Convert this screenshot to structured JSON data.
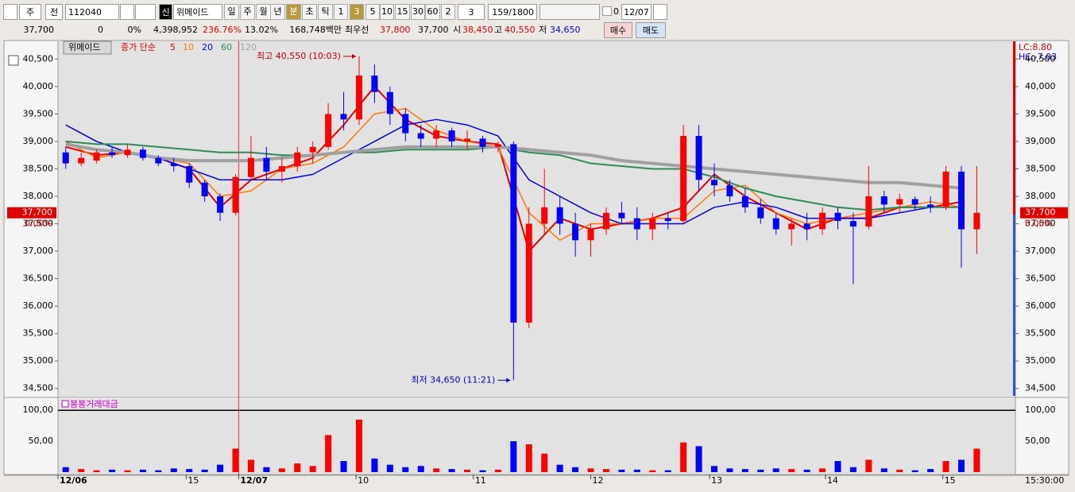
{
  "toolbar": {
    "market": "주",
    "scope": "전",
    "code": "112040",
    "badge": "신",
    "name": "위메이드",
    "periods": [
      "일",
      "주",
      "월",
      "년",
      "분",
      "초",
      "틱"
    ],
    "minutes": [
      "1",
      "3",
      "5",
      "10",
      "15",
      "30",
      "60",
      "2"
    ],
    "interval": "3",
    "count": "159/1800",
    "check": "0",
    "date": "12/07"
  },
  "quote": {
    "price": "37,700",
    "change": "0",
    "rate": "0%",
    "volume": "4,398,952",
    "vol_ratio": "236.76%",
    "turnover": "13.02%",
    "amount": "168,748백만",
    "best_label": "최우선",
    "ask": "37,800",
    "bid": "37,700",
    "open_label": "시",
    "open": "38,450",
    "high_label": "고",
    "high": "40,550",
    "low_label": "저",
    "low": "34,650",
    "buy": "매수",
    "sell": "매도"
  },
  "chart_data": [
    {
      "type": "candlestick",
      "title": "위메이드",
      "legend_label": "종가 단순",
      "up_color": "#ff0000",
      "down_color": "#0000ff",
      "open": [
        38800,
        38600,
        38650,
        38800,
        38750,
        38850,
        38700,
        38600,
        38550,
        38250,
        38000,
        37700,
        38350,
        38700,
        38450,
        38550,
        38800,
        38900,
        39500,
        39400,
        40200,
        39900,
        39500,
        39150,
        39050,
        39200,
        39000,
        39050,
        38900,
        38950,
        35700,
        37500,
        37800,
        37500,
        37200,
        37400,
        37700,
        37600,
        37400,
        37600,
        37550,
        39100,
        38300,
        38200,
        38000,
        37800,
        37600,
        37400,
        37500,
        37400,
        37700,
        37550,
        37450,
        38000,
        37850,
        37950,
        37850,
        37800,
        38450,
        37400
      ],
      "high": [
        38900,
        38800,
        38850,
        38900,
        38950,
        38900,
        38750,
        38700,
        38600,
        38300,
        38050,
        38400,
        39100,
        38900,
        38700,
        38900,
        39000,
        39700,
        39900,
        40550,
        40400,
        40000,
        39600,
        39300,
        39300,
        39250,
        39200,
        39100,
        39000,
        39000,
        37800,
        38500,
        38000,
        37700,
        37500,
        37800,
        37900,
        37800,
        37700,
        37700,
        39300,
        39300,
        38600,
        38300,
        38150,
        37950,
        37700,
        37600,
        37700,
        37800,
        37800,
        37700,
        38550,
        38100,
        38050,
        38000,
        38000,
        38550,
        38550,
        38550
      ],
      "low": [
        38500,
        38550,
        38600,
        38700,
        38700,
        38650,
        38550,
        38450,
        38150,
        37900,
        37550,
        37650,
        38300,
        38300,
        38250,
        38450,
        38600,
        38850,
        39200,
        39300,
        39700,
        39300,
        39000,
        38900,
        38900,
        38900,
        38850,
        38800,
        38800,
        34650,
        35600,
        37300,
        37300,
        36900,
        36900,
        37300,
        37500,
        37200,
        37200,
        37400,
        37500,
        38100,
        38000,
        37900,
        37700,
        37500,
        37300,
        37100,
        37200,
        37300,
        37400,
        36400,
        37400,
        37700,
        37700,
        37750,
        37700,
        37750,
        36700,
        36950
      ],
      "close": [
        38600,
        38700,
        38800,
        38750,
        38850,
        38700,
        38600,
        38550,
        38250,
        38000,
        37700,
        38350,
        38700,
        38450,
        38550,
        38800,
        38900,
        39500,
        39400,
        40200,
        39900,
        39500,
        39150,
        39050,
        39200,
        39000,
        39050,
        38900,
        38950,
        35700,
        37500,
        37800,
        37500,
        37200,
        37400,
        37700,
        37600,
        37400,
        37600,
        37550,
        39100,
        38300,
        38200,
        38000,
        37800,
        37600,
        37400,
        37500,
        37400,
        37700,
        37550,
        37450,
        38000,
        37850,
        37950,
        37850,
        37800,
        38450,
        37400,
        37700
      ],
      "series": [
        {
          "name": "5",
          "color": "#e00000",
          "width": 2,
          "x": [
            0,
            2,
            4,
            6,
            8,
            10,
            12,
            14,
            16,
            18,
            20,
            22,
            24,
            26,
            28,
            30,
            32,
            34,
            36,
            38,
            40,
            42,
            44,
            46,
            48,
            50,
            52,
            54,
            56,
            58
          ],
          "values": [
            38900,
            38750,
            38800,
            38700,
            38500,
            37800,
            38300,
            38500,
            38700,
            39300,
            40000,
            39400,
            39100,
            39000,
            38950,
            37000,
            37600,
            37400,
            37500,
            37600,
            37800,
            38400,
            38000,
            37700,
            37400,
            37600,
            37600,
            37800,
            37800,
            37900
          ]
        },
        {
          "name": "10",
          "color": "#ff7800",
          "width": 1.5,
          "x": [
            0,
            2,
            4,
            6,
            8,
            10,
            12,
            14,
            16,
            18,
            20,
            22,
            24,
            26,
            28,
            30,
            32,
            34,
            36,
            38,
            40,
            42,
            44,
            46,
            48,
            50,
            52,
            54,
            56,
            58
          ],
          "values": [
            39000,
            38700,
            38800,
            38700,
            38600,
            38000,
            38100,
            38500,
            38600,
            38900,
            39500,
            39600,
            39200,
            39000,
            38900,
            37700,
            37200,
            37500,
            37500,
            37600,
            37600,
            38100,
            38200,
            37700,
            37500,
            37600,
            37700,
            37800,
            37900,
            37800
          ]
        },
        {
          "name": "20",
          "color": "#0000e0",
          "width": 1.5,
          "x": [
            0,
            2,
            4,
            6,
            8,
            10,
            12,
            14,
            16,
            18,
            20,
            22,
            24,
            26,
            28,
            30,
            32,
            34,
            36,
            38,
            40,
            42,
            44,
            46,
            48,
            50,
            52,
            54,
            56,
            58
          ],
          "values": [
            39300,
            39000,
            38800,
            38700,
            38500,
            38300,
            38300,
            38300,
            38400,
            38700,
            39000,
            39300,
            39400,
            39300,
            39100,
            38300,
            38000,
            37700,
            37500,
            37500,
            37500,
            37800,
            37900,
            37800,
            37600,
            37600,
            37600,
            37700,
            37800,
            37800
          ]
        },
        {
          "name": "60",
          "color": "#2e8b57",
          "width": 2,
          "x": [
            0,
            2,
            4,
            6,
            8,
            10,
            12,
            14,
            16,
            18,
            20,
            22,
            24,
            26,
            28,
            30,
            32,
            34,
            36,
            38,
            40,
            42,
            44,
            46,
            48,
            50,
            52,
            54,
            56,
            58
          ],
          "values": [
            39000,
            38950,
            38950,
            38900,
            38850,
            38800,
            38800,
            38750,
            38750,
            38800,
            38800,
            38850,
            38850,
            38850,
            38900,
            38800,
            38750,
            38600,
            38550,
            38500,
            38500,
            38350,
            38150,
            38000,
            37900,
            37800,
            37750,
            37800,
            37800,
            37800
          ]
        },
        {
          "name": "120",
          "color": "#a0a0a0",
          "width": 4,
          "x": [
            0,
            2,
            4,
            6,
            8,
            10,
            12,
            14,
            16,
            18,
            20,
            22,
            24,
            26,
            28,
            30,
            32,
            34,
            36,
            38,
            40,
            42,
            44,
            46,
            48,
            50,
            52,
            54,
            56,
            58
          ],
          "values": [
            38950,
            38850,
            38800,
            38700,
            38650,
            38650,
            38650,
            38700,
            38750,
            38800,
            38850,
            38900,
            38900,
            38900,
            38900,
            38850,
            38800,
            38750,
            38650,
            38600,
            38550,
            38500,
            38450,
            38400,
            38350,
            38300,
            38250,
            38250,
            38200,
            38150
          ]
        }
      ],
      "annotations": [
        {
          "text": "최고 40,550 (10:03)",
          "x": 19,
          "y": 40550,
          "color": "#c00000"
        },
        {
          "text": "최저 34,650 (11:21)",
          "x": 29,
          "y": 34650,
          "color": "#0000c0"
        }
      ],
      "last_price": {
        "value": 37700,
        "label": "37,700",
        "change": "0.00%"
      },
      "lc_label": "LC:8.80",
      "hc_label": "HC:-7.03",
      "xlim": [
        0,
        62
      ],
      "ylim": [
        34380,
        40780
      ],
      "yticks": [
        {
          "value": 34500,
          "label": "34,500"
        },
        {
          "value": 35000,
          "label": "35,000"
        },
        {
          "value": 35500,
          "label": "35,500"
        },
        {
          "value": 36000,
          "label": "36,000"
        },
        {
          "value": 36500,
          "label": "36,500"
        },
        {
          "value": 37000,
          "label": "37,000"
        },
        {
          "value": 37500,
          "label": "37,500"
        },
        {
          "value": 38000,
          "label": "38,000"
        },
        {
          "value": 38500,
          "label": "38,500"
        },
        {
          "value": 39000,
          "label": "39,000"
        },
        {
          "value": 39500,
          "label": "39,500"
        },
        {
          "value": 40000,
          "label": "40,000"
        },
        {
          "value": 40500,
          "label": "40,500"
        }
      ]
    },
    {
      "type": "bar",
      "title": "봉봉거래대금",
      "up_color": "#ff0000",
      "down_color": "#0000ff",
      "values": [
        8,
        5,
        3,
        4,
        3,
        4,
        3,
        6,
        5,
        4,
        12,
        38,
        20,
        8,
        6,
        14,
        10,
        60,
        18,
        85,
        22,
        12,
        8,
        10,
        6,
        5,
        4,
        3,
        4,
        50,
        45,
        30,
        12,
        8,
        6,
        5,
        4,
        4,
        3,
        3,
        48,
        42,
        10,
        6,
        5,
        4,
        6,
        5,
        4,
        6,
        18,
        8,
        20,
        6,
        4,
        3,
        5,
        18,
        20,
        38
      ],
      "xlim": [
        0,
        62
      ],
      "ylim": [
        0,
        117
      ],
      "yticks": [
        {
          "value": 50,
          "label": "50,00"
        },
        {
          "value": 100,
          "label": "100,00"
        }
      ],
      "xticks": [
        {
          "value": 0,
          "label": "12/06"
        },
        {
          "value": 8.3,
          "label": "15"
        },
        {
          "value": 11.7,
          "label": "12/07"
        },
        {
          "value": 19.3,
          "label": "10"
        },
        {
          "value": 26.9,
          "label": "11"
        },
        {
          "value": 34.5,
          "label": "12"
        },
        {
          "value": 42.2,
          "label": "13"
        },
        {
          "value": 49.7,
          "label": "14"
        },
        {
          "value": 57.3,
          "label": "15"
        }
      ],
      "time_label": "15:30:00"
    }
  ]
}
